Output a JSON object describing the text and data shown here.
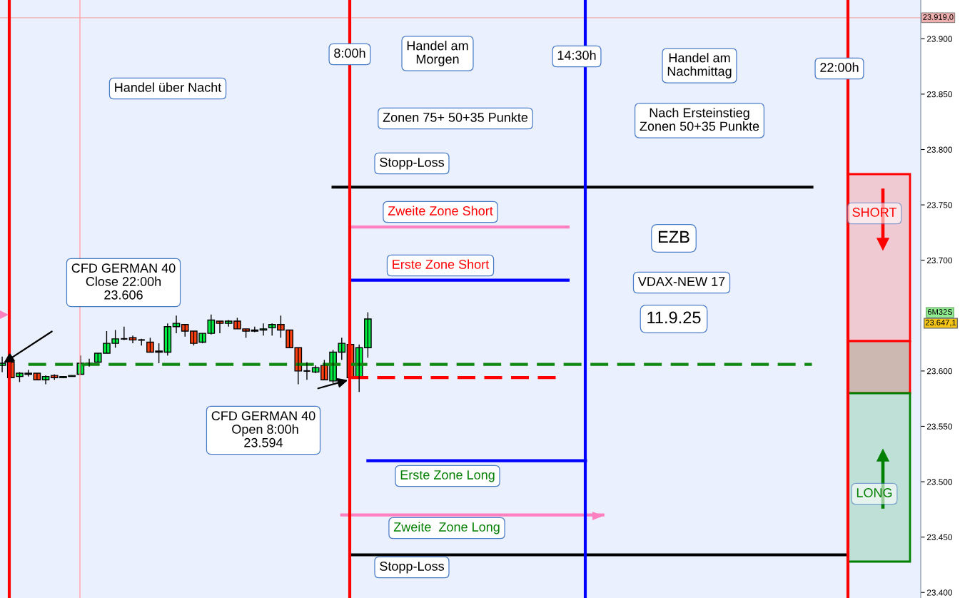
{
  "chart_data": {
    "type": "candlestick",
    "categories": [
      null,
      null,
      null,
      null,
      null,
      null,
      null,
      null,
      null,
      null,
      null,
      null,
      null,
      null,
      null,
      null,
      null,
      null,
      null,
      null,
      null,
      null,
      null,
      null,
      null,
      null,
      null,
      null,
      null,
      null,
      null,
      null,
      null,
      null,
      null,
      null,
      null,
      null,
      null,
      null,
      null,
      null,
      null,
      null,
      null,
      null,
      null,
      null,
      null,
      null,
      null,
      null,
      null,
      null,
      null,
      null,
      null,
      null,
      null,
      null,
      null,
      null,
      null,
      null,
      null,
      null,
      null,
      null,
      null,
      null,
      null,
      null,
      null,
      null,
      null,
      null,
      null,
      null,
      null,
      null,
      null,
      null,
      null,
      null,
      null,
      null,
      null,
      null,
      null,
      null,
      null,
      null,
      null,
      null,
      null,
      null,
      null,
      null,
      null,
      null,
      null,
      null,
      null,
      null,
      null,
      null
    ],
    "ohlc": [
      [
        23605,
        23613,
        23599,
        23607
      ],
      [
        23608,
        23608,
        23594,
        23594
      ],
      [
        23595,
        23599,
        23590,
        23598
      ],
      [
        23597,
        23601,
        23595,
        23598
      ],
      [
        23598,
        23598,
        23592,
        23592
      ],
      [
        23592,
        23596,
        23588,
        23595
      ],
      [
        23596,
        23597,
        23592,
        23594
      ],
      [
        23594,
        23595,
        23594,
        23595
      ],
      [
        23595,
        23596,
        23595,
        23596
      ],
      [
        23597,
        23614,
        23597,
        23607
      ],
      [
        23606,
        23611,
        23604,
        23607
      ],
      [
        23608,
        23616,
        23608,
        23616
      ],
      [
        23616,
        23636,
        23616,
        23625
      ],
      [
        23625,
        23637,
        23621,
        23629
      ],
      [
        23629,
        23640,
        23628,
        23629
      ],
      [
        23630,
        23632,
        23625,
        23628
      ],
      [
        23628,
        23629,
        23623,
        23628
      ],
      [
        23626,
        23630,
        23617,
        23617
      ],
      [
        23617,
        23625,
        23607,
        23618
      ],
      [
        23617,
        23643,
        23614,
        23640
      ],
      [
        23640,
        23650,
        23634,
        23643
      ],
      [
        23642,
        23642,
        23631,
        23636
      ],
      [
        23636,
        23636,
        23623,
        23625
      ],
      [
        23626,
        23634,
        23625,
        23634
      ],
      [
        23634,
        23651,
        23633,
        23646
      ],
      [
        23645,
        23645,
        23634,
        23643
      ],
      [
        23643,
        23646,
        23640,
        23645
      ],
      [
        23645,
        23648,
        23638,
        23638
      ],
      [
        23638,
        23638,
        23630,
        23636
      ],
      [
        23636,
        23640,
        23635,
        23637
      ],
      [
        23637,
        23643,
        23632,
        23638
      ],
      [
        23639,
        23643,
        23632,
        23642
      ],
      [
        23642,
        23650,
        23630,
        23637
      ],
      [
        23637,
        23637,
        23621,
        23621
      ],
      [
        23621,
        23621,
        23588,
        23600
      ],
      [
        23600,
        23608,
        23592,
        23600
      ],
      [
        23599,
        23605,
        23598,
        23603
      ],
      [
        23605,
        23610,
        23592,
        23592
      ],
      [
        23591,
        23619,
        23589,
        23617
      ],
      [
        23617,
        23630,
        23610,
        23625
      ],
      [
        23624,
        23624,
        23594,
        23594
      ],
      [
        23594,
        23624,
        23581,
        23621
      ],
      [
        23621,
        23653,
        23612,
        23647
      ],
      null,
      null,
      null,
      null,
      null,
      null,
      null,
      null,
      null,
      null,
      null,
      null,
      null,
      null,
      null,
      null,
      null,
      null,
      null,
      null,
      null,
      null,
      null,
      null,
      null,
      null,
      null,
      null,
      null,
      null,
      null,
      null,
      null,
      null,
      null,
      null,
      null,
      null,
      null,
      null,
      null,
      null,
      null,
      null,
      null,
      null,
      null,
      null,
      null,
      null,
      null,
      null,
      null,
      null,
      null,
      null,
      null,
      null,
      null,
      null,
      null,
      null,
      null
    ],
    "colors": [
      "#00ee44",
      "#ff4010",
      "#00ee44",
      "#00ee44",
      "#ff4010",
      "#00ee44",
      "#ff4010",
      "#00ee44",
      "#00ee44",
      "#00ee44",
      "#00ee44",
      "#00ee44",
      "#00ee44",
      "#00ee44",
      "#000000",
      "#ff4010",
      "#000000",
      "#ff4010",
      "#00ee44",
      "#00ee44",
      "#00ee44",
      "#ff4010",
      "#ff4010",
      "#00ee44",
      "#00ee44",
      "#ff4010",
      "#00ee44",
      "#ff4010",
      "#ff4010",
      "#00ee44",
      "#00ee44",
      "#00ee44",
      "#ff4010",
      "#ff4010",
      "#ff4010",
      "#000000",
      "#00ee44",
      "#ff4010",
      "#00ee44",
      "#00ee44",
      "#ff4010",
      "#00ee44",
      "#00ee44",
      null,
      null,
      null,
      null,
      null,
      null,
      null,
      null,
      null,
      null,
      null,
      null,
      null,
      null,
      null,
      null,
      null,
      null,
      null,
      null,
      null,
      null,
      null,
      null,
      null,
      null,
      null,
      null,
      null,
      null,
      null,
      null,
      null,
      null,
      null,
      null,
      null,
      null,
      null,
      null,
      null,
      null,
      null,
      null,
      null,
      null,
      null,
      null,
      null,
      null,
      null,
      null,
      null,
      null,
      null,
      null,
      null,
      null,
      null,
      null,
      null,
      null,
      null
    ],
    "series": [
      {
        "type": "line",
        "color": "#000000",
        "values": [
          null,
          null,
          null,
          null,
          null,
          null,
          null,
          null,
          null,
          null,
          null,
          null,
          null,
          null,
          null,
          null,
          null,
          null,
          null,
          null,
          null,
          null,
          null,
          null,
          null,
          null,
          null,
          null,
          null,
          null,
          null,
          null,
          null,
          null,
          null,
          null,
          null,
          null,
          23766,
          23766,
          23766,
          23766,
          23766,
          23766,
          23766,
          23766,
          23766,
          23766,
          23766,
          23766,
          23766,
          23766,
          23766,
          23766,
          23766,
          23766,
          23766,
          23766,
          23766,
          23766,
          23766,
          23766,
          23766,
          23766,
          23766,
          23766,
          23766,
          23766,
          23766,
          23766,
          23766,
          23766,
          23766,
          23766,
          23766,
          23766,
          23766,
          23766,
          23766,
          23766,
          23766,
          23766,
          23766,
          23766,
          23766,
          23766,
          23766,
          23766,
          23766,
          23766,
          23766,
          23766,
          23766,
          23766,
          null,
          null,
          null,
          null,
          null,
          null,
          null,
          null,
          null,
          null,
          null,
          null
        ]
      },
      {
        "type": "line",
        "color": "#ff80c0",
        "values": [
          null,
          null,
          null,
          null,
          null,
          null,
          null,
          null,
          null,
          null,
          null,
          null,
          null,
          null,
          null,
          null,
          null,
          null,
          null,
          null,
          null,
          null,
          null,
          null,
          null,
          null,
          null,
          null,
          null,
          null,
          null,
          null,
          null,
          null,
          null,
          null,
          null,
          null,
          null,
          null,
          23730,
          23730,
          23730,
          23730,
          23730,
          23730,
          23730,
          23730,
          23730,
          23730,
          23730,
          23730,
          23730,
          23730,
          23730,
          23730,
          23730,
          23730,
          23730,
          23730,
          23730,
          23730,
          23730,
          23730,
          23730,
          23730,
          null,
          null,
          null,
          null,
          null,
          null,
          null,
          null,
          null,
          null,
          null,
          null,
          null,
          null,
          null,
          null,
          null,
          null,
          null,
          null,
          null,
          null,
          null,
          null,
          null,
          null,
          null,
          null,
          null,
          null,
          null,
          null,
          null,
          null,
          null,
          null,
          null,
          null,
          null,
          null
        ]
      },
      {
        "type": "line",
        "color": "#0000ff",
        "values": [
          null,
          null,
          null,
          null,
          null,
          null,
          null,
          null,
          null,
          null,
          null,
          null,
          null,
          null,
          null,
          null,
          null,
          null,
          null,
          null,
          null,
          null,
          null,
          null,
          null,
          null,
          null,
          null,
          null,
          null,
          null,
          null,
          null,
          null,
          null,
          null,
          null,
          null,
          null,
          null,
          23682,
          23682,
          23682,
          23682,
          23682,
          23682,
          23682,
          23682,
          23682,
          23682,
          23682,
          23682,
          23682,
          23682,
          23682,
          23682,
          23682,
          23682,
          23682,
          23682,
          23682,
          23682,
          23682,
          23682,
          23682,
          23682,
          null,
          null,
          null,
          null,
          null,
          null,
          null,
          null,
          null,
          null,
          null,
          null,
          null,
          null,
          null,
          null,
          null,
          null,
          null,
          null,
          null,
          null,
          null,
          null,
          null,
          null,
          null,
          null,
          null,
          null,
          null,
          null,
          null,
          null,
          null,
          null,
          null,
          null,
          null,
          null
        ]
      },
      {
        "type": "line",
        "color": "#118811",
        "line_style": "dashed",
        "values": [
          null,
          null,
          null,
          23606,
          23606,
          23606,
          23606,
          23606,
          23606,
          23606,
          23606,
          23606,
          23606,
          23606,
          23606,
          23606,
          23606,
          23606,
          23606,
          23606,
          23606,
          23606,
          23606,
          23606,
          23606,
          23606,
          23606,
          23606,
          23606,
          23606,
          23606,
          23606,
          23606,
          23606,
          23606,
          23606,
          23606,
          23606,
          23606,
          23606,
          23606,
          23606,
          23606,
          23606,
          23606,
          23606,
          23606,
          23606,
          23606,
          23606,
          23606,
          23606,
          23606,
          23606,
          23606,
          23606,
          23606,
          23606,
          23606,
          23606,
          23606,
          23606,
          23606,
          23606,
          23606,
          23606,
          23606,
          23606,
          23606,
          23606,
          23606,
          23606,
          23606,
          23606,
          23606,
          23606,
          23606,
          23606,
          23606,
          23606,
          23606,
          23606,
          23606,
          23606,
          23606,
          23606,
          23606,
          23606,
          23606,
          23606,
          23606,
          23606,
          23606,
          23606,
          null,
          null,
          null,
          null,
          null,
          null,
          null,
          null,
          null,
          null,
          null,
          null
        ]
      },
      {
        "type": "line",
        "color": "#ff0000",
        "line_style": "dashed",
        "values": [
          null,
          null,
          null,
          null,
          null,
          null,
          null,
          null,
          null,
          null,
          null,
          null,
          null,
          null,
          null,
          null,
          null,
          null,
          null,
          null,
          null,
          null,
          null,
          null,
          null,
          null,
          null,
          null,
          null,
          null,
          null,
          null,
          null,
          null,
          null,
          null,
          null,
          null,
          null,
          null,
          23594,
          23594,
          23594,
          23594,
          23594,
          23594,
          23594,
          23594,
          23594,
          23594,
          23594,
          23594,
          23594,
          23594,
          23594,
          23594,
          23594,
          23594,
          23594,
          23594,
          23594,
          23594,
          23594,
          23594,
          23594,
          null,
          null,
          null,
          null,
          null,
          null,
          null,
          null,
          null,
          null,
          null,
          null,
          null,
          null,
          null,
          null,
          null,
          null,
          null,
          null,
          null,
          null,
          null,
          null,
          null,
          null,
          null,
          null,
          null,
          null,
          null,
          null,
          null,
          null,
          null,
          null,
          null,
          null,
          null,
          null,
          null
        ]
      },
      {
        "type": "line",
        "color": "#0000ff",
        "values": [
          null,
          null,
          null,
          null,
          null,
          null,
          null,
          null,
          null,
          null,
          null,
          null,
          null,
          null,
          null,
          null,
          null,
          null,
          null,
          null,
          null,
          null,
          null,
          null,
          null,
          null,
          null,
          null,
          null,
          null,
          null,
          null,
          null,
          null,
          null,
          null,
          null,
          null,
          null,
          null,
          null,
          null,
          23519,
          23519,
          23519,
          23519,
          23519,
          23519,
          23519,
          23519,
          23519,
          23519,
          23519,
          23519,
          23519,
          23519,
          23519,
          23519,
          23519,
          23519,
          23519,
          23519,
          23519,
          23519,
          23519,
          23519,
          23519,
          23519,
          null,
          null,
          null,
          null,
          null,
          null,
          null,
          null,
          null,
          null,
          null,
          null,
          null,
          null,
          null,
          null,
          null,
          null,
          null,
          null,
          null,
          null,
          null,
          null,
          null,
          null,
          null,
          null,
          null,
          null,
          null,
          null,
          null,
          null,
          null,
          null,
          null,
          null
        ]
      },
      {
        "type": "line",
        "color": "#ff80c0",
        "values": [
          null,
          null,
          null,
          null,
          null,
          null,
          null,
          null,
          null,
          null,
          null,
          null,
          null,
          null,
          null,
          null,
          null,
          null,
          null,
          null,
          null,
          null,
          null,
          null,
          null,
          null,
          null,
          null,
          null,
          null,
          null,
          null,
          null,
          null,
          null,
          null,
          null,
          null,
          null,
          23470,
          23470,
          23470,
          23470,
          23470,
          23470,
          23470,
          23470,
          23470,
          23470,
          23470,
          23470,
          23470,
          23470,
          23470,
          23470,
          23470,
          23470,
          23470,
          23470,
          23470,
          23470,
          23470,
          23470,
          23470,
          23470,
          23470,
          23470,
          23470,
          23470,
          23470,
          null,
          null,
          null,
          null,
          null,
          null,
          null,
          null,
          null,
          null,
          null,
          null,
          null,
          null,
          null,
          null,
          null,
          null,
          null,
          null,
          null,
          null,
          null,
          null,
          null,
          null,
          null,
          null,
          null,
          null,
          null,
          null,
          null,
          null,
          null,
          null
        ]
      },
      {
        "type": "line",
        "color": "#000000",
        "values": [
          null,
          null,
          null,
          null,
          null,
          null,
          null,
          null,
          null,
          null,
          null,
          null,
          null,
          null,
          null,
          null,
          null,
          null,
          null,
          null,
          null,
          null,
          null,
          null,
          null,
          null,
          null,
          null,
          null,
          null,
          null,
          null,
          null,
          null,
          null,
          null,
          null,
          null,
          null,
          null,
          23434,
          23434,
          23434,
          23434,
          23434,
          23434,
          23434,
          23434,
          23434,
          23434,
          23434,
          23434,
          23434,
          23434,
          23434,
          23434,
          23434,
          23434,
          23434,
          23434,
          23434,
          23434,
          23434,
          23434,
          23434,
          23434,
          23434,
          23434,
          23434,
          23434,
          23434,
          23434,
          23434,
          23434,
          23434,
          23434,
          23434,
          23434,
          23434,
          23434,
          23434,
          23434,
          23434,
          23434,
          23434,
          23434,
          23434,
          23434,
          23434,
          23434,
          23434,
          23434,
          23434,
          23434,
          23434,
          23434,
          23434,
          23434,
          null,
          null,
          null,
          null,
          null,
          null,
          null,
          null
        ]
      }
    ],
    "ref_lines": [
      {
        "axis": "y",
        "value": 23919,
        "label": "23.919,0",
        "color": "#f0b0b0",
        "line_style": "solid"
      }
    ],
    "annotations": [
      "Handel über Nacht",
      "Handel am\nMorgen",
      "Handel am\nNachmittag",
      "Zonen 75+ 50+35 Punkte",
      "Nach Ersteinstieg\nZonen 50+35 Punkte",
      "Stopp-Loss",
      "Zweite Zone Short",
      "Erste Zone Short",
      "EZB",
      "VDAX-NEW 17",
      "11.9.25",
      "CFD GERMAN 40\nClose 22:00h\n23.606",
      "CFD GERMAN 40\n Open 8:00h\n23.594",
      "Erste Zone Long",
      "Zweite  Zone Long",
      "Stopp-Loss",
      "SHORT",
      "LONG",
      "8:00h",
      "14:30h",
      "22:00h",
      "6M32S",
      "23.647,1"
    ],
    "ylim": [
      23395,
      23935
    ],
    "yticks": [
      {
        "value": 23400,
        "label": "23.400"
      },
      {
        "value": 23450,
        "label": "23.450"
      },
      {
        "value": 23500,
        "label": "23.500"
      },
      {
        "value": 23550,
        "label": "23.550"
      },
      {
        "value": 23600,
        "label": "23.600"
      },
      {
        "value": 23700,
        "label": "23.700"
      },
      {
        "value": 23750,
        "label": "23.750"
      },
      {
        "value": 23800,
        "label": "23.800"
      },
      {
        "value": 23850,
        "label": "23.850"
      },
      {
        "value": 23900,
        "label": "23.900"
      }
    ],
    "tick_labels": "y",
    "grid": false,
    "legend": false
  }
}
